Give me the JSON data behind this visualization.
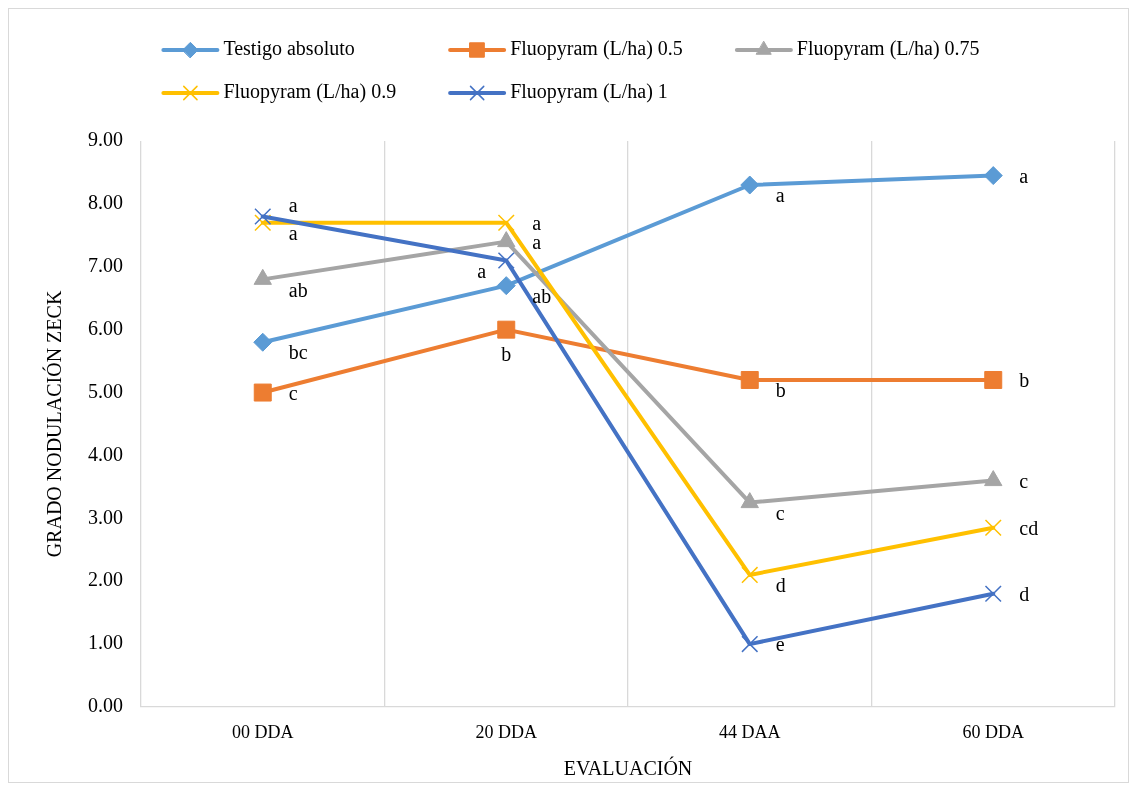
{
  "chart_data": {
    "type": "line",
    "xlabel": "EVALUACIÓN",
    "ylabel": "GRADO NODULACIÓN ZECK",
    "categories": [
      "00 DDA",
      "20 DDA",
      "44 DAA",
      "60 DDA"
    ],
    "series": [
      {
        "name": "Testigo absoluto",
        "color": "#5b9bd5",
        "marker": "diamond",
        "values": [
          5.8,
          6.7,
          8.3,
          8.45
        ]
      },
      {
        "name": "Fluopyram (L/ha) 0.5",
        "color": "#ed7d31",
        "marker": "square",
        "values": [
          5.0,
          6.0,
          5.2,
          5.2
        ]
      },
      {
        "name": "Fluopyram (L/ha) 0.75",
        "color": "#a5a5a5",
        "marker": "triangle",
        "values": [
          6.8,
          7.4,
          3.25,
          3.6
        ]
      },
      {
        "name": "Fluopyram (L/ha) 0.9",
        "color": "#ffc000",
        "marker": "cross",
        "values": [
          7.7,
          7.7,
          2.1,
          2.85
        ]
      },
      {
        "name": "Fluopyram (L/ha) 1",
        "color": "#4472c4",
        "marker": "cross",
        "values": [
          7.8,
          7.1,
          1.0,
          1.8
        ]
      }
    ],
    "ylim": [
      0,
      9
    ],
    "yticks": [
      {
        "value": 0,
        "label": "0.00"
      },
      {
        "value": 1,
        "label": "1.00"
      },
      {
        "value": 2,
        "label": "2.00"
      },
      {
        "value": 3,
        "label": "3.00"
      },
      {
        "value": 4,
        "label": "4.00"
      },
      {
        "value": 5,
        "label": "5.00"
      },
      {
        "value": 6,
        "label": "6.00"
      },
      {
        "value": 7,
        "label": "7.00"
      },
      {
        "value": 8,
        "label": "8.00"
      },
      {
        "value": 9,
        "label": "9.00"
      }
    ],
    "grid": "x",
    "legend": "top",
    "annotations": [
      {
        "text": "a",
        "x": "00 DDA",
        "y": 7.8
      },
      {
        "text": "a",
        "x": "00 DDA",
        "y": 7.7
      },
      {
        "text": "ab",
        "x": "00 DDA",
        "y": 6.8
      },
      {
        "text": "bc",
        "x": "00 DDA",
        "y": 5.8
      },
      {
        "text": "c",
        "x": "00 DDA",
        "y": 5.0
      },
      {
        "text": "a",
        "x": "20 DDA",
        "y": 7.7
      },
      {
        "text": "a",
        "x": "20 DDA",
        "y": 7.4
      },
      {
        "text": "a",
        "x": "20 DDA",
        "y": 7.1
      },
      {
        "text": "ab",
        "x": "20 DDA",
        "y": 6.7
      },
      {
        "text": "b",
        "x": "20 DDA",
        "y": 6.0
      },
      {
        "text": "a",
        "x": "44 DAA",
        "y": 8.3
      },
      {
        "text": "b",
        "x": "44 DAA",
        "y": 5.2
      },
      {
        "text": "c",
        "x": "44 DAA",
        "y": 3.25
      },
      {
        "text": "d",
        "x": "44 DAA",
        "y": 2.1
      },
      {
        "text": "e",
        "x": "44 DAA",
        "y": 1.0
      },
      {
        "text": "a",
        "x": "60 DDA",
        "y": 8.45
      },
      {
        "text": "b",
        "x": "60 DDA",
        "y": 5.2
      },
      {
        "text": "c",
        "x": "60 DDA",
        "y": 3.6
      },
      {
        "text": "cd",
        "x": "60 DDA",
        "y": 2.85
      },
      {
        "text": "d",
        "x": "60 DDA",
        "y": 1.8
      }
    ]
  }
}
